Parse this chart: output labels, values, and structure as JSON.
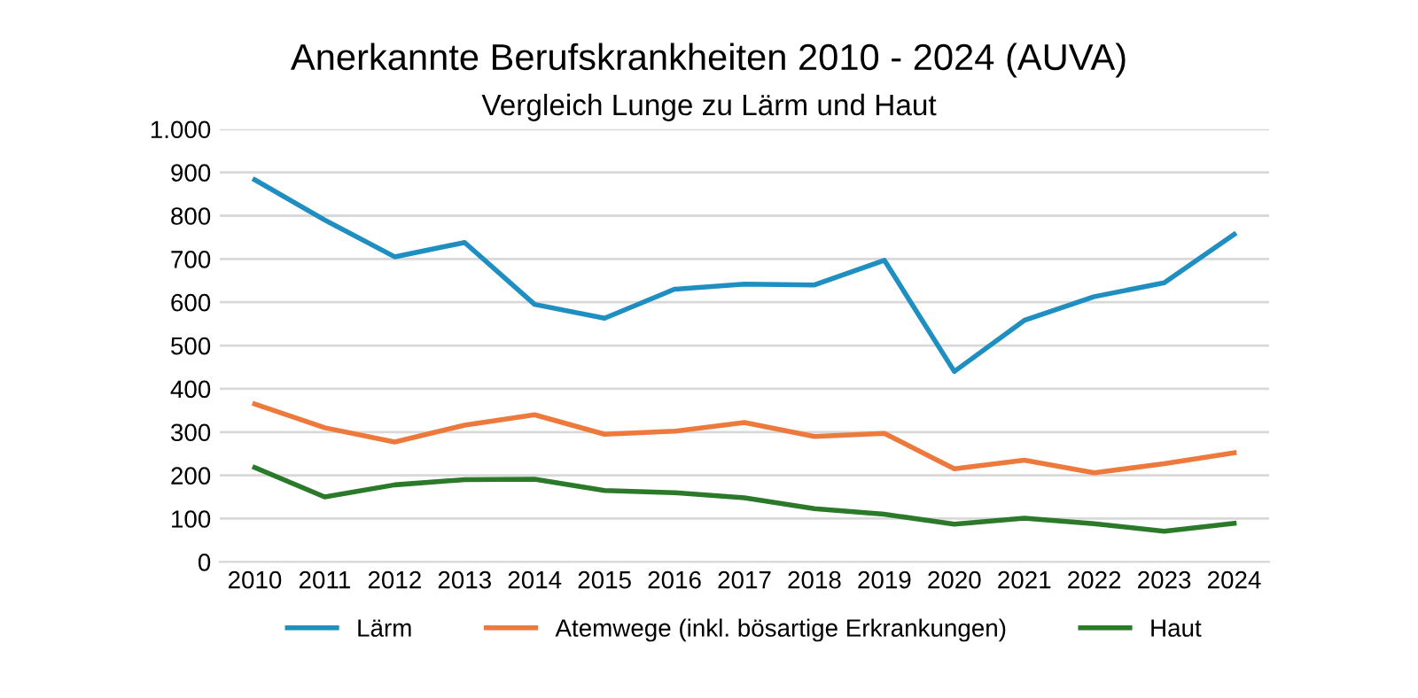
{
  "chart_data": {
    "type": "line",
    "title": "Anerkannte Berufskrankheiten 2010 - 2024 (AUVA)",
    "subtitle": "Vergleich Lunge zu Lärm und Haut",
    "categories": [
      "2010",
      "2011",
      "2012",
      "2013",
      "2014",
      "2015",
      "2016",
      "2017",
      "2018",
      "2019",
      "2020",
      "2021",
      "2022",
      "2023",
      "2024"
    ],
    "series": [
      {
        "name": "Lärm",
        "color": "#1f8ec0",
        "values": [
          883,
          790,
          705,
          738,
          595,
          563,
          630,
          642,
          640,
          697,
          440,
          558,
          613,
          645,
          757
        ]
      },
      {
        "name": "Atemwege (inkl. bösartige Erkrankungen)",
        "color": "#ed7a3c",
        "values": [
          365,
          310,
          277,
          316,
          340,
          295,
          302,
          322,
          290,
          297,
          215,
          235,
          206,
          227,
          252
        ]
      },
      {
        "name": "Haut",
        "color": "#2a7a2a",
        "values": [
          218,
          150,
          178,
          190,
          191,
          165,
          160,
          148,
          123,
          110,
          87,
          101,
          88,
          71,
          89
        ]
      }
    ],
    "ylim": [
      0,
      1000
    ],
    "yticks": [
      0,
      100,
      200,
      300,
      400,
      500,
      600,
      700,
      800,
      900,
      {
        "value": 1000,
        "label": "1.000"
      }
    ],
    "grid": "y",
    "legend": "bottom",
    "marker": "none",
    "line_style": "solid"
  }
}
